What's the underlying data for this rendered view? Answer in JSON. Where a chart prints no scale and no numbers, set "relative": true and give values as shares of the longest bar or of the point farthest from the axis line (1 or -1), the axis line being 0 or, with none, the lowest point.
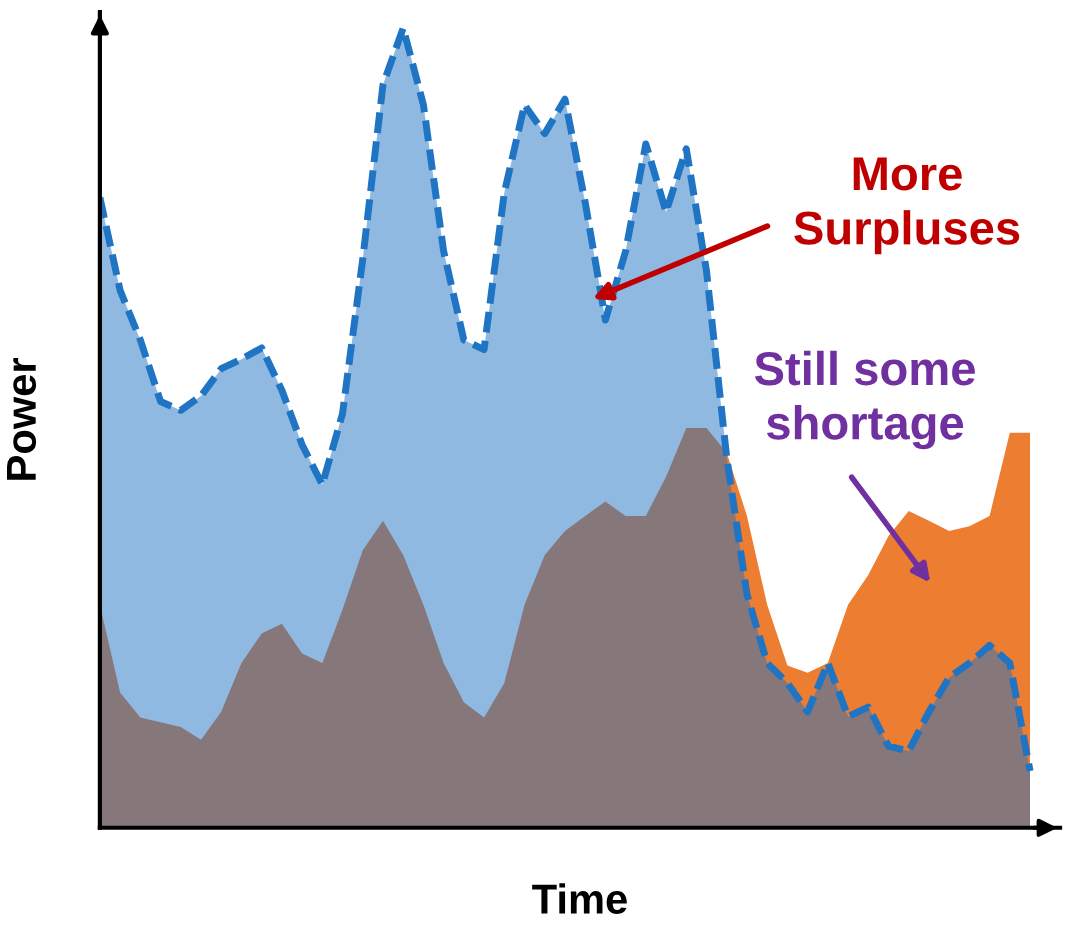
{
  "chart_data": {
    "type": "area",
    "relative": true,
    "xlabel": "Time",
    "ylabel": "Power",
    "categories": [
      null,
      null,
      null,
      null,
      null,
      null,
      null,
      null,
      null,
      null,
      null,
      null,
      null,
      null,
      null,
      null,
      null,
      null,
      null,
      null,
      null,
      null,
      null,
      null,
      null,
      null,
      null,
      null,
      null,
      null,
      null,
      null,
      null,
      null,
      null,
      null,
      null,
      null,
      null,
      null,
      null,
      null,
      null,
      null,
      null,
      null,
      null
    ],
    "series": [
      {
        "color": "#ed7d31",
        "values": [
          0.279,
          0.169,
          0.138,
          0.132,
          0.126,
          0.11,
          0.145,
          0.206,
          0.243,
          0.255,
          0.218,
          0.206,
          0.273,
          0.347,
          0.384,
          0.341,
          0.279,
          0.206,
          0.157,
          0.138,
          0.181,
          0.279,
          0.341,
          0.371,
          0.39,
          0.408,
          0.39,
          0.39,
          0.439,
          0.5,
          0.5,
          0.469,
          0.39,
          0.279,
          0.203,
          0.194,
          0.206,
          0.279,
          0.316,
          0.365,
          0.396,
          0.384,
          0.371,
          0.377,
          0.39,
          0.494,
          0.494
        ]
      },
      {
        "color": "#1f74c4",
        "line_style": "dashed",
        "values": [
          0.788,
          0.672,
          0.61,
          0.533,
          0.522,
          0.54,
          0.574,
          0.586,
          0.6,
          0.547,
          0.479,
          0.429,
          0.518,
          0.711,
          0.929,
          1.0,
          0.904,
          0.721,
          0.61,
          0.598,
          0.794,
          0.904,
          0.868,
          0.911,
          0.782,
          0.635,
          0.721,
          0.855,
          0.77,
          0.849,
          0.696,
          0.463,
          0.292,
          0.206,
          0.181,
          0.145,
          0.206,
          0.139,
          0.151,
          0.102,
          0.096,
          0.145,
          0.188,
          0.206,
          0.228,
          0.206,
          0.071
        ]
      }
    ],
    "annotations": [
      "More Surpluses",
      "Still some shortage"
    ]
  }
}
